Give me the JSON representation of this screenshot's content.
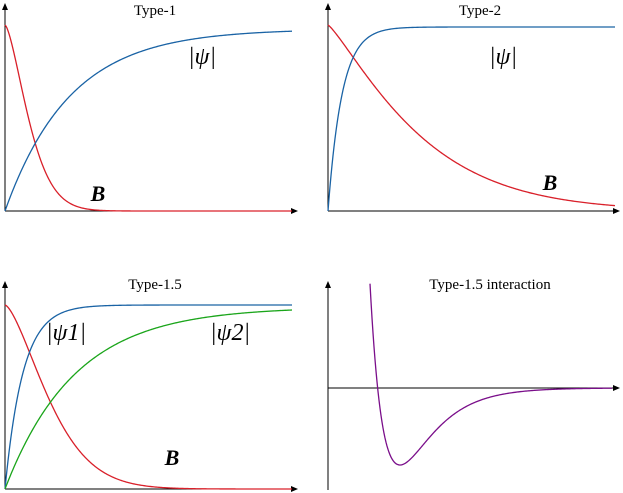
{
  "panels": [
    {
      "title": "Type-1",
      "labels": [
        "|ψ|",
        "B"
      ]
    },
    {
      "title": "Type-2",
      "labels": [
        "|ψ|",
        "B"
      ]
    },
    {
      "title": "Type-1.5",
      "labels": [
        "|ψ1|",
        "|ψ2|",
        "B"
      ]
    },
    {
      "title": "Type-1.5 interaction",
      "labels": []
    }
  ]
}
